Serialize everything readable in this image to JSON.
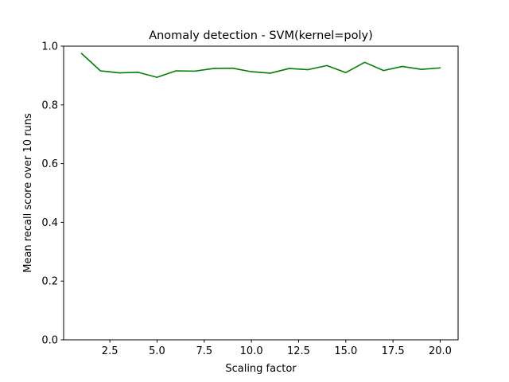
{
  "chart_data": {
    "type": "line",
    "title": "Anomaly detection - SVM(kernel=poly)",
    "xlabel": "Scaling factor",
    "ylabel": "Mean recall score over 10 runs",
    "xlim": [
      0.05,
      20.95
    ],
    "ylim": [
      0.0,
      1.0
    ],
    "xticks": [
      2.5,
      5.0,
      7.5,
      10.0,
      12.5,
      15.0,
      17.5,
      20.0
    ],
    "xtick_labels": [
      "2.5",
      "5.0",
      "7.5",
      "10.0",
      "12.5",
      "15.0",
      "17.5",
      "20.0"
    ],
    "yticks": [
      0.0,
      0.2,
      0.4,
      0.6,
      0.8,
      1.0
    ],
    "ytick_labels": [
      "0.0",
      "0.2",
      "0.4",
      "0.6",
      "0.8",
      "1.0"
    ],
    "grid": false,
    "series": [
      {
        "color": "#008000",
        "x": [
          1,
          2,
          3,
          4,
          5,
          6,
          7,
          8,
          9,
          10,
          11,
          12,
          13,
          14,
          15,
          16,
          17,
          18,
          19,
          20
        ],
        "y": [
          0.975,
          0.916,
          0.909,
          0.911,
          0.894,
          0.916,
          0.915,
          0.924,
          0.925,
          0.913,
          0.908,
          0.924,
          0.92,
          0.934,
          0.91,
          0.945,
          0.917,
          0.931,
          0.921,
          0.926
        ]
      }
    ]
  }
}
